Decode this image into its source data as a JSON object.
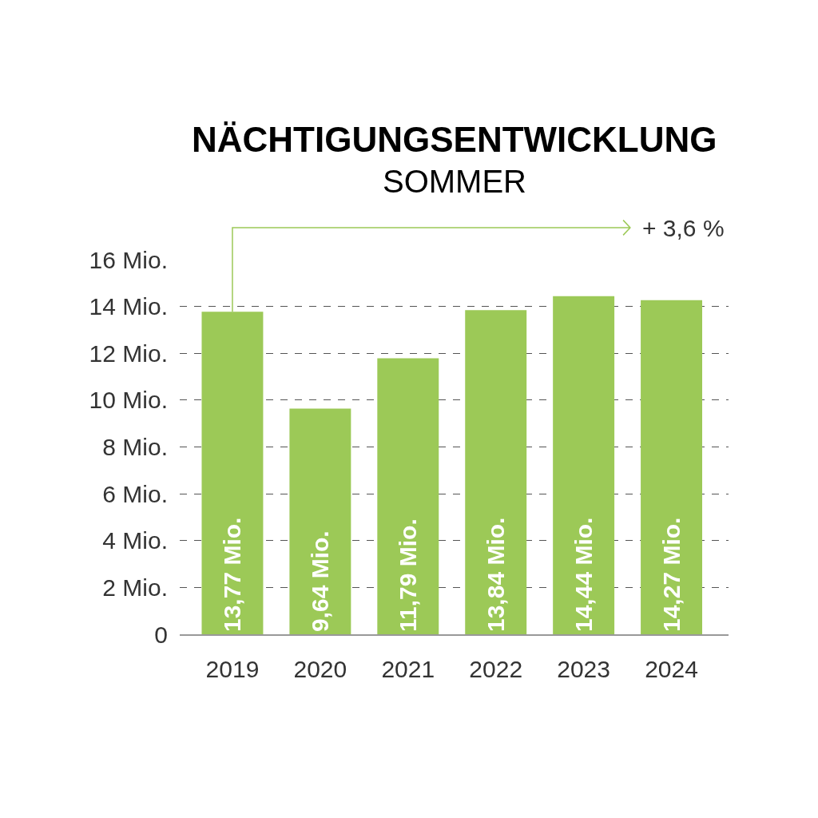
{
  "chart_data": {
    "type": "bar",
    "title": "NÄCHTIGUNGSENTWICKLUNG",
    "subtitle": "SOMMER",
    "categories": [
      "2019",
      "2020",
      "2021",
      "2022",
      "2023",
      "2024"
    ],
    "values": [
      13.77,
      9.64,
      11.79,
      13.84,
      14.44,
      14.27
    ],
    "value_labels": [
      "13,77 Mio.",
      "9,64 Mio.",
      "11,79 Mio.",
      "13,84 Mio.",
      "14,44 Mio.",
      "14,27 Mio."
    ],
    "color": "#9cc957",
    "annotations": [
      "+ 3,6 %"
    ],
    "ylim": [
      0,
      16
    ],
    "yticks": [
      0,
      {
        "value": 2,
        "label": "2 Mio."
      },
      {
        "value": 4,
        "label": "4 Mio."
      },
      {
        "value": 6,
        "label": "6 Mio."
      },
      {
        "value": 8,
        "label": "8 Mio."
      },
      {
        "value": 10,
        "label": "10 Mio."
      },
      {
        "value": 12,
        "label": "12 Mio."
      },
      {
        "value": 14,
        "label": "14 Mio."
      },
      {
        "value": 16,
        "label": "16 Mio."
      }
    ],
    "grid": "y"
  }
}
